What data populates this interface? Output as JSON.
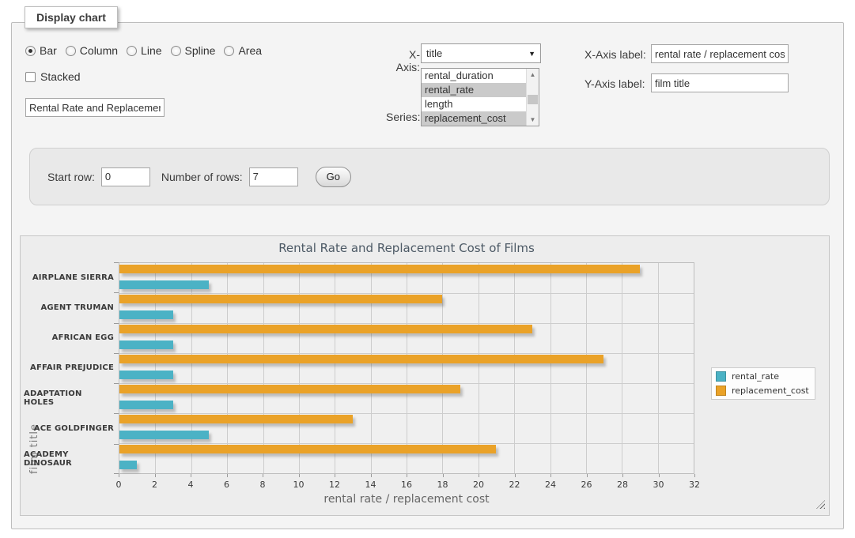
{
  "panel": {
    "legend": "Display chart"
  },
  "controls": {
    "chart_types": [
      {
        "label": "Bar",
        "selected": true
      },
      {
        "label": "Column",
        "selected": false
      },
      {
        "label": "Line",
        "selected": false
      },
      {
        "label": "Spline",
        "selected": false
      },
      {
        "label": "Area",
        "selected": false
      }
    ],
    "stacked": {
      "label": "Stacked",
      "checked": false
    },
    "title_input": {
      "value": "Rental Rate and Replacement Cost of Films"
    },
    "x_axis": {
      "label": "X-Axis:",
      "selected": "title"
    },
    "series_select": {
      "label": "Series:",
      "options": [
        {
          "label": "rental_duration",
          "selected": false
        },
        {
          "label": "rental_rate",
          "selected": true
        },
        {
          "label": "length",
          "selected": false
        },
        {
          "label": "replacement_cost",
          "selected": true
        }
      ]
    },
    "x_axis_label": {
      "label": "X-Axis label:",
      "value": "rental rate / replacement cost"
    },
    "y_axis_label": {
      "label": "Y-Axis label:",
      "value": "film title"
    }
  },
  "row_controls": {
    "start_row_label": "Start row:",
    "start_row_value": "0",
    "num_rows_label": "Number of rows:",
    "num_rows_value": "7",
    "go_label": "Go"
  },
  "icons": {
    "dropdown_arrow": "▼",
    "scroll_up": "▲",
    "scroll_down": "▼"
  },
  "chart_data": {
    "type": "bar",
    "orientation": "horizontal",
    "title": "Rental Rate and Replacement Cost of Films",
    "categories": [
      "AIRPLANE SIERRA",
      "AGENT TRUMAN",
      "AFRICAN EGG",
      "AFFAIR PREJUDICE",
      "ADAPTATION HOLES",
      "ACE GOLDFINGER",
      "ACADEMY DINOSAUR"
    ],
    "series": [
      {
        "name": "rental_rate",
        "color": "#4bb2c5",
        "values": [
          4.99,
          2.99,
          2.99,
          2.99,
          2.99,
          4.99,
          0.99
        ]
      },
      {
        "name": "replacement_cost",
        "color": "#eaa228",
        "values": [
          28.99,
          17.99,
          22.99,
          26.99,
          18.99,
          12.99,
          20.99
        ]
      }
    ],
    "xlabel": "rental rate / replacement cost",
    "ylabel": "film title",
    "xlim": [
      0,
      32
    ],
    "x_ticks": [
      0,
      2,
      4,
      6,
      8,
      10,
      12,
      14,
      16,
      18,
      20,
      22,
      24,
      26,
      28,
      30,
      32
    ],
    "grid": true,
    "legend_position": "right"
  }
}
